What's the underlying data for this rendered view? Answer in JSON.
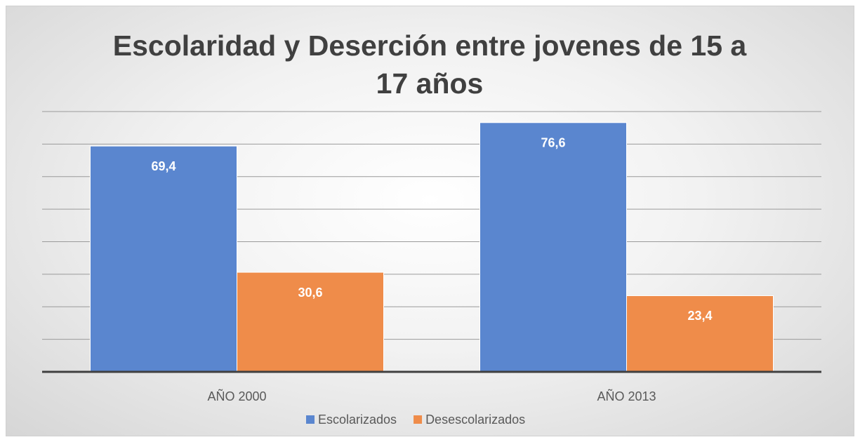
{
  "chart_data": {
    "type": "bar",
    "title": "Escolaridad y Deserción entre jovenes de 15 a 17 años",
    "categories": [
      "AÑO 2000",
      "AÑO 2013"
    ],
    "series": [
      {
        "name": "Escolarizados",
        "color": "#5a86cf",
        "values": [
          69.4,
          76.6
        ],
        "value_labels": [
          "69,4",
          "76,6"
        ]
      },
      {
        "name": "Desescolarizados",
        "color": "#ef8c4a",
        "values": [
          30.6,
          23.4
        ],
        "value_labels": [
          "30,6",
          "23,4"
        ]
      }
    ],
    "ylim": [
      0,
      80
    ],
    "yticks": [
      0,
      10,
      20,
      30,
      40,
      50,
      60,
      70,
      80
    ],
    "grid": true,
    "legend": "bottom"
  }
}
